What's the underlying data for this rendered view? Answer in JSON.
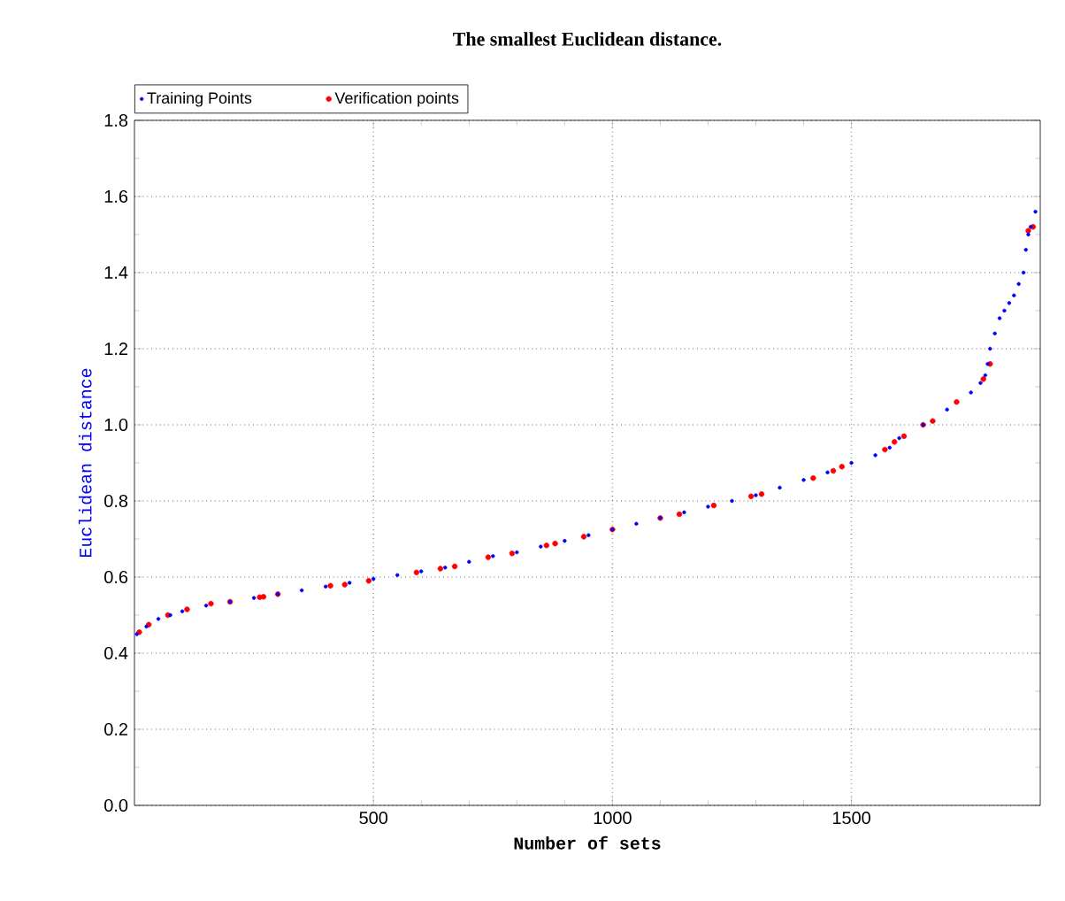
{
  "chart_data": {
    "type": "scatter",
    "title": "The smallest Euclidean distance.",
    "xlabel": "Number of sets",
    "ylabel": "Euclidean distance",
    "xlim": [
      0,
      1895
    ],
    "ylim": [
      0,
      1.8
    ],
    "xticks": [
      500,
      1000,
      1500
    ],
    "yticks": [
      {
        "value": 0,
        "label": "0.0"
      },
      0.2,
      0.4,
      0.6,
      0.8,
      {
        "value": 1,
        "label": "1.0"
      },
      1.2,
      1.4,
      1.6,
      1.8
    ],
    "grid": true,
    "legend": "top left",
    "series": [
      {
        "name": "Training Points",
        "color": "#0000ff",
        "x": [
          5,
          25,
          50,
          75,
          100,
          150,
          200,
          250,
          300,
          350,
          400,
          450,
          500,
          550,
          600,
          650,
          700,
          750,
          800,
          850,
          900,
          950,
          1000,
          1050,
          1100,
          1150,
          1200,
          1250,
          1300,
          1350,
          1400,
          1450,
          1500,
          1550,
          1580,
          1600,
          1650,
          1700,
          1750,
          1770,
          1780,
          1785,
          1790,
          1800,
          1810,
          1820,
          1830,
          1840,
          1850,
          1860,
          1865,
          1870,
          1875,
          1885
        ],
        "values": [
          0.45,
          0.47,
          0.49,
          0.5,
          0.51,
          0.525,
          0.535,
          0.545,
          0.555,
          0.565,
          0.575,
          0.585,
          0.595,
          0.605,
          0.615,
          0.625,
          0.64,
          0.655,
          0.665,
          0.68,
          0.695,
          0.71,
          0.725,
          0.74,
          0.755,
          0.77,
          0.785,
          0.8,
          0.815,
          0.835,
          0.855,
          0.875,
          0.9,
          0.92,
          0.94,
          0.965,
          1.0,
          1.04,
          1.085,
          1.11,
          1.13,
          1.16,
          1.2,
          1.24,
          1.28,
          1.3,
          1.32,
          1.34,
          1.37,
          1.4,
          1.46,
          1.5,
          1.52,
          1.56
        ]
      },
      {
        "name": "Verification points",
        "color": "#ff0000",
        "x": [
          10,
          30,
          70,
          110,
          160,
          200,
          262,
          270,
          300,
          410,
          440,
          490,
          590,
          640,
          670,
          740,
          790,
          862,
          880,
          940,
          1000,
          1100,
          1140,
          1212,
          1290,
          1312,
          1420,
          1462,
          1480,
          1570,
          1590,
          1610,
          1650,
          1670,
          1720,
          1776,
          1790,
          1870,
          1880
        ],
        "values": [
          0.455,
          0.475,
          0.5,
          0.515,
          0.53,
          0.535,
          0.547,
          0.548,
          0.555,
          0.577,
          0.58,
          0.59,
          0.612,
          0.622,
          0.628,
          0.652,
          0.662,
          0.683,
          0.688,
          0.706,
          0.725,
          0.755,
          0.765,
          0.788,
          0.812,
          0.818,
          0.86,
          0.879,
          0.89,
          0.935,
          0.955,
          0.97,
          1.0,
          1.01,
          1.06,
          1.12,
          1.16,
          1.51,
          1.52
        ]
      }
    ]
  }
}
